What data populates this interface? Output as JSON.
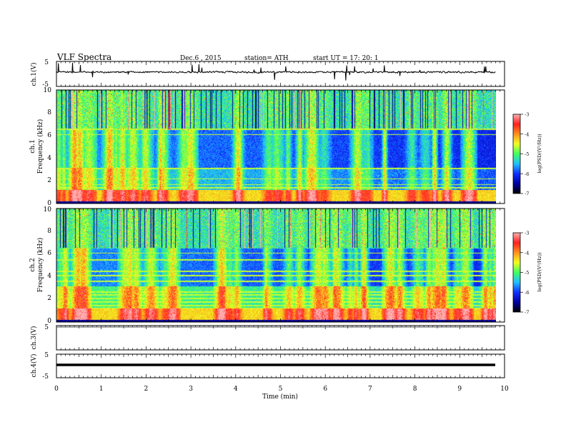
{
  "header": {
    "title": "VLF Spectra",
    "date": "Dec.6  , 2015",
    "station": "station= ATH",
    "start": "start  UT  =   17: 20: 1"
  },
  "chart_data": [
    {
      "type": "line",
      "id": "ch1-waveform",
      "ylabel": "ch.1(V)",
      "ylim": [
        -5,
        5
      ],
      "yticks": [
        "5",
        "-5"
      ],
      "note": "noisy waveform near 0 V with sporadic spikes"
    },
    {
      "type": "heatmap",
      "id": "ch1-spectrogram",
      "ylabel_line1": "ch.1",
      "ylabel_line2": "Frequency  (kHz)",
      "ylim": [
        0,
        10
      ],
      "yticks": [
        "0",
        "2",
        "4",
        "6",
        "8",
        "10"
      ],
      "colorbar": {
        "label": "log(PSD/(V²/Hz))",
        "range": [
          -7,
          -3
        ],
        "ticks": [
          "-3",
          "-4",
          "-5",
          "-6",
          "-7"
        ]
      }
    },
    {
      "type": "heatmap",
      "id": "ch2-spectrogram",
      "ylabel_line1": "ch.2",
      "ylabel_line2": "Frequency  (kHz)",
      "ylim": [
        0,
        10
      ],
      "yticks": [
        "0",
        "2",
        "4",
        "6",
        "8",
        "10"
      ],
      "colorbar": {
        "label": "log(PSD/(V²/Hz))",
        "range": [
          -7,
          -3
        ],
        "ticks": [
          "-3",
          "-4",
          "-5",
          "-6",
          "-7"
        ]
      }
    },
    {
      "type": "line",
      "id": "ch3-waveform",
      "ylabel": "ch.3(V)",
      "ylim": [
        -5,
        5
      ],
      "yticks": [
        "5"
      ],
      "note": "flat line"
    },
    {
      "type": "line",
      "id": "ch4-waveform",
      "ylabel": "ch.4(V)",
      "ylim": [
        -5,
        5
      ],
      "yticks": [
        "5",
        "-5"
      ],
      "note": "thick trace at constant level"
    }
  ],
  "xaxis": {
    "label": "Time  (min)",
    "range": [
      0,
      10
    ],
    "ticks": [
      "0",
      "1",
      "2",
      "3",
      "4",
      "5",
      "6",
      "7",
      "8",
      "9",
      "10"
    ]
  },
  "colors": {
    "cmap": [
      "#000000",
      "#0000a0",
      "#1030ff",
      "#20c0ff",
      "#40ff60",
      "#f0ff20",
      "#ff9020",
      "#ff2020",
      "#ffb0b0"
    ],
    "trace": "#000000"
  }
}
